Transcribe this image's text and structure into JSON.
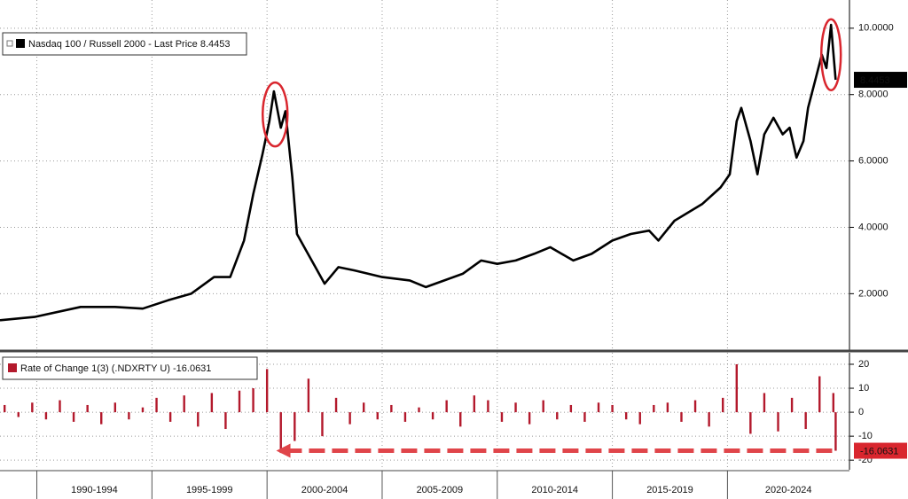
{
  "chart_data": [
    {
      "type": "line",
      "series": [
        {
          "name": "Nasdaq 100 / Russell 2000 - Last Price 8.4453",
          "color": "#000000",
          "x": [
            1988.4,
            1989.9,
            1991.9,
            1993.4,
            1994.6,
            1995.7,
            1996.7,
            1997.7,
            1998.4,
            1999.0,
            1999.4,
            1999.8,
            2000.1,
            2000.3,
            2000.6,
            2000.8,
            2001.1,
            2001.3,
            2001.7,
            2002.1,
            2002.5,
            2003.1,
            2003.8,
            2005.0,
            2006.2,
            2006.9,
            2007.7,
            2008.5,
            2009.3,
            2010.0,
            2010.8,
            2011.6,
            2012.3,
            2013.3,
            2014.1,
            2015.0,
            2015.8,
            2016.6,
            2017.0,
            2017.7,
            2018.9,
            2019.7,
            2020.1,
            2020.4,
            2020.6,
            2021.0,
            2021.3,
            2021.6,
            2022.0,
            2022.4,
            2022.7,
            2023.0,
            2023.3,
            2023.5,
            2023.8,
            2024.1,
            2024.3,
            2024.5,
            2024.7
          ],
          "values": [
            1.2,
            1.3,
            1.6,
            1.6,
            1.55,
            1.8,
            2.0,
            2.5,
            2.5,
            3.6,
            5.0,
            6.2,
            7.2,
            8.1,
            7.0,
            7.5,
            5.5,
            3.8,
            3.3,
            2.8,
            2.3,
            2.8,
            2.7,
            2.5,
            2.4,
            2.2,
            2.4,
            2.6,
            3.0,
            2.9,
            3.0,
            3.2,
            3.4,
            3.0,
            3.2,
            3.6,
            3.8,
            3.9,
            3.6,
            4.2,
            4.7,
            5.2,
            5.6,
            7.2,
            7.6,
            6.6,
            5.6,
            6.8,
            7.3,
            6.8,
            7.0,
            6.1,
            6.6,
            7.6,
            8.4,
            9.2,
            8.8,
            10.1,
            8.4453
          ]
        }
      ],
      "xlim": [
        1988.4,
        2025.3
      ],
      "ylim": [
        0.3,
        10.85
      ],
      "yticks": [
        {
          "value": 2,
          "label": "2.0000"
        },
        {
          "value": 4,
          "label": "4.0000"
        },
        {
          "value": 6,
          "label": "6.0000"
        },
        {
          "value": 8,
          "label": "8.0000"
        },
        {
          "value": 10,
          "label": "10.0000"
        }
      ],
      "grid": true
    },
    {
      "type": "bar",
      "series": [
        {
          "name": "Rate of Change 1(3) (.NDXRTY U) -16.0631",
          "color": "#b3192c",
          "x": [
            1988.6,
            1989.2,
            1989.8,
            1990.4,
            1991.0,
            1991.6,
            1992.2,
            1992.8,
            1993.4,
            1994.0,
            1994.6,
            1995.2,
            1995.8,
            1996.4,
            1997.0,
            1997.6,
            1998.2,
            1998.8,
            1999.4,
            2000.0,
            2000.6,
            2001.2,
            2001.8,
            2002.4,
            2003.0,
            2003.6,
            2004.2,
            2004.8,
            2005.4,
            2006.0,
            2006.6,
            2007.2,
            2007.8,
            2008.4,
            2009.0,
            2009.6,
            2010.2,
            2010.8,
            2011.4,
            2012.0,
            2012.6,
            2013.2,
            2013.8,
            2014.4,
            2015.0,
            2015.6,
            2016.2,
            2016.8,
            2017.4,
            2018.0,
            2018.6,
            2019.2,
            2019.8,
            2020.4,
            2021.0,
            2021.6,
            2022.2,
            2022.8,
            2023.4,
            2024.0,
            2024.6,
            2024.7
          ],
          "values": [
            3,
            -2,
            4,
            -3,
            5,
            -4,
            3,
            -5,
            4,
            -3,
            2,
            6,
            -4,
            7,
            -6,
            8,
            -7,
            9,
            10,
            18,
            -17,
            -12,
            14,
            -10,
            6,
            -5,
            4,
            -3,
            3,
            -4,
            2,
            -3,
            5,
            -6,
            7,
            5,
            -4,
            4,
            -5,
            5,
            -3,
            3,
            -4,
            4,
            3,
            -3,
            -5,
            3,
            4,
            -4,
            5,
            -6,
            6,
            20,
            -9,
            8,
            -8,
            6,
            -7,
            15,
            8,
            -16.0631
          ]
        }
      ],
      "xlim": [
        1988.4,
        2025.3
      ],
      "ylim": [
        -24,
        24.8
      ],
      "yticks": [
        -20,
        -10,
        0,
        10,
        20
      ],
      "xticks": [
        {
          "value": 1990,
          "label": "1990-1994"
        },
        {
          "value": 1995,
          "label": "1995-1999"
        },
        {
          "value": 2000,
          "label": "2000-2004"
        },
        {
          "value": 2005,
          "label": "2005-2009"
        },
        {
          "value": 2010,
          "label": "2010-2014"
        },
        {
          "value": 2015,
          "label": "2015-2019"
        },
        {
          "value": 2020,
          "label": "2020-2024"
        }
      ],
      "grid": true
    }
  ]
}
